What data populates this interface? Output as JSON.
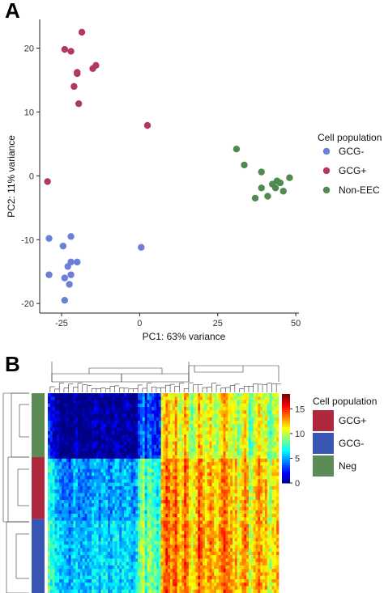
{
  "panel_a_letter": "A",
  "panel_b_letter": "B",
  "chart_data": [
    {
      "type": "scatter",
      "xlabel": "PC1: 63% variance",
      "ylabel": "PC2: 11% variance",
      "xlim": [
        -32,
        51
      ],
      "ylim": [
        -21.5,
        24.5
      ],
      "xticks": [
        -25,
        0,
        25,
        50
      ],
      "yticks": [
        -20,
        -10,
        0,
        10,
        20
      ],
      "grid": false,
      "legend": {
        "title": "Cell population",
        "position": "right",
        "entries": [
          "GCG-",
          "GCG+",
          "Non-EEC"
        ]
      },
      "series": [
        {
          "name": "GCG-",
          "color": "#6c7fd8",
          "points": [
            [
              -29,
              -9.8
            ],
            [
              -22,
              -9.5
            ],
            [
              -24.5,
              -11
            ],
            [
              -22,
              -13.5
            ],
            [
              -20,
              -13.5
            ],
            [
              -23,
              -14.2
            ],
            [
              -29,
              -15.5
            ],
            [
              -22,
              -15.5
            ],
            [
              -24,
              -16
            ],
            [
              -22.5,
              -17
            ],
            [
              -24,
              -19.5
            ],
            [
              0.5,
              -11.2
            ]
          ]
        },
        {
          "name": "GCG+",
          "color": "#b03a5b",
          "points": [
            [
              -18.5,
              22.5
            ],
            [
              -24,
              19.8
            ],
            [
              -22,
              19.5
            ],
            [
              -14,
              17.3
            ],
            [
              -15,
              16.8
            ],
            [
              -20,
              16.2
            ],
            [
              -20,
              16
            ],
            [
              -21,
              14
            ],
            [
              -19.5,
              11.3
            ],
            [
              2.5,
              7.9
            ],
            [
              -29.5,
              -0.9
            ]
          ]
        },
        {
          "name": "Non-EEC",
          "color": "#4f8b4f",
          "points": [
            [
              31,
              4.2
            ],
            [
              33.5,
              1.7
            ],
            [
              39,
              0.6
            ],
            [
              44,
              -0.8
            ],
            [
              45,
              -1.1
            ],
            [
              48,
              -0.3
            ],
            [
              42.5,
              -1.3
            ],
            [
              39,
              -1.9
            ],
            [
              41,
              -3.2
            ],
            [
              37,
              -3.5
            ],
            [
              46,
              -2.4
            ],
            [
              43.5,
              -1.9
            ]
          ]
        }
      ]
    },
    {
      "type": "heatmap",
      "colorbar": {
        "min": 0,
        "max": 18,
        "ticks": [
          0,
          5,
          10,
          15
        ]
      },
      "legend": {
        "title": "Cell population",
        "entries": [
          {
            "label": "GCG+",
            "color": "#b0283e"
          },
          {
            "label": "GCG-",
            "color": "#3a56b5"
          },
          {
            "label": "Neg",
            "color": "#5c8c55"
          }
        ]
      },
      "row_annotation": [
        {
          "group": "Neg",
          "color": "#5c8c55",
          "fraction": 0.32
        },
        {
          "group": "GCG+",
          "color": "#b0283e",
          "fraction": 0.31
        },
        {
          "group": "GCG-",
          "color": "#3a56b5",
          "fraction": 0.37
        }
      ],
      "column_profile": {
        "note": "Relative expression across gene columns (data scale 0-18), low block on left, high block on right-center",
        "values": [
          6,
          5,
          5,
          4,
          4,
          3,
          3,
          3,
          3,
          2,
          3,
          4,
          4,
          3,
          3,
          3,
          3,
          3,
          3,
          4,
          4,
          4,
          3,
          4,
          4,
          4,
          3,
          3,
          4,
          4,
          4,
          3,
          4,
          4,
          4,
          4,
          3,
          3,
          4,
          6,
          7,
          8,
          5,
          7,
          7,
          6,
          6,
          5,
          6,
          12,
          13,
          14,
          13,
          12,
          13,
          14,
          12,
          11,
          12,
          14,
          13,
          11,
          10,
          11,
          12,
          14,
          13,
          12,
          11,
          12,
          13,
          12,
          11,
          11,
          12,
          13,
          14,
          13,
          12,
          12,
          11,
          12,
          10,
          11,
          12,
          13,
          12,
          9,
          10,
          11,
          12,
          13,
          12,
          11,
          12,
          10,
          9,
          11,
          11,
          12
        ]
      },
      "group_offsets": {
        "Neg": -3,
        "GCG+": 1.5,
        "GCG-": 2.5
      }
    }
  ]
}
